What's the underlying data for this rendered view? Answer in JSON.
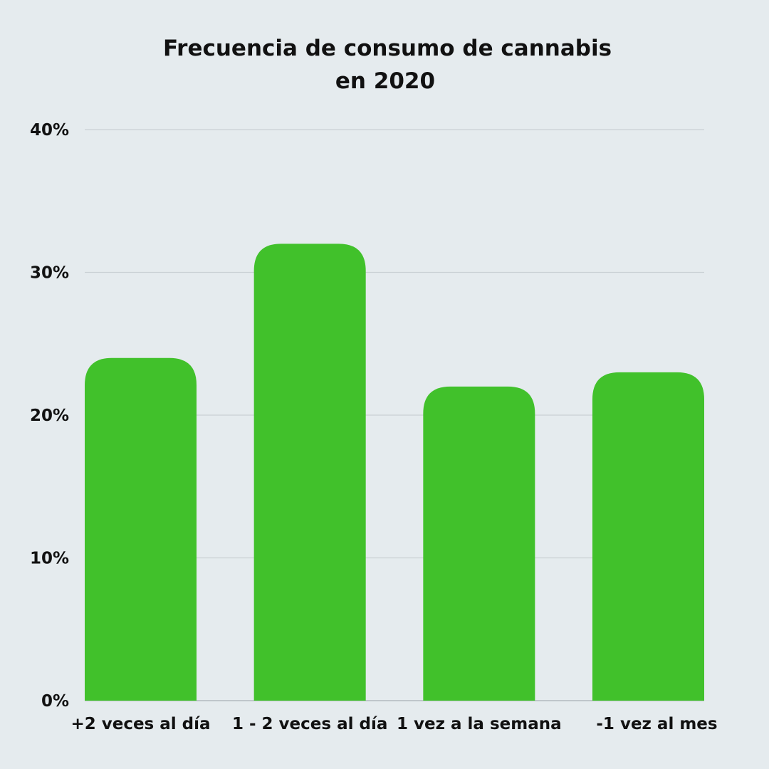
{
  "chart_data": {
    "type": "bar",
    "title_lines": [
      "Frecuencia de consumo de cannabis",
      "en 2020"
    ],
    "categories": [
      "+2 veces al día",
      "1 - 2 veces al día",
      "1 vez a la semana",
      "-1 vez al mes"
    ],
    "values": [
      24,
      32,
      22,
      23
    ],
    "ylim": [
      0,
      40
    ],
    "yticks": [
      0,
      10,
      20,
      30,
      40
    ],
    "ytick_labels": [
      "0%",
      "10%",
      "20%",
      "30%",
      "40%"
    ],
    "grid": true,
    "bar_color": "#41c12b",
    "background_color": "#e5ebee",
    "text_color": "#111111"
  }
}
